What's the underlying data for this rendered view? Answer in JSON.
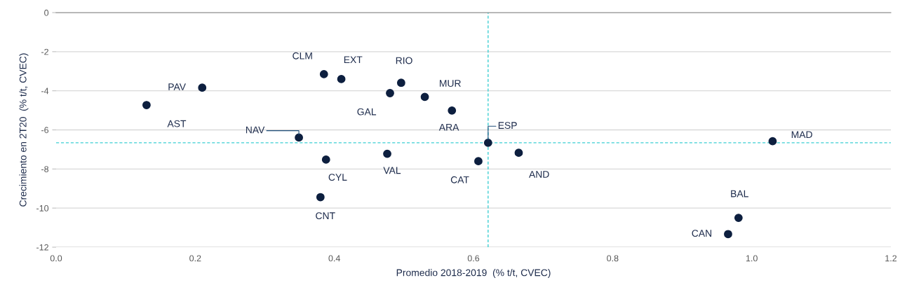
{
  "chart_data": {
    "type": "scatter",
    "xlabel": "Promedio 2018-2019  (% t/t, CVEC)",
    "ylabel": "Crecimiento en 2T20  (% t/t, CVEC)",
    "xlim": [
      0,
      1.2
    ],
    "ylim": [
      -12,
      0
    ],
    "xticks": [
      {
        "value": 0,
        "label": "0.0"
      },
      {
        "value": 0.2,
        "label": "0.2"
      },
      {
        "value": 0.4,
        "label": "0.4"
      },
      {
        "value": 0.6,
        "label": "0.6"
      },
      {
        "value": 0.8,
        "label": "0.8"
      },
      {
        "value": 1.0,
        "label": "1.0"
      },
      {
        "value": 1.2,
        "label": "1.2"
      }
    ],
    "yticks": [
      0,
      -2,
      -4,
      -6,
      -8,
      -10,
      -12
    ],
    "grid": "y",
    "marker": "circle",
    "legend": false,
    "ref_lines": [
      {
        "axis": "x",
        "value": 0.621,
        "color": "#3dcfd3",
        "line_style": "dashed"
      },
      {
        "axis": "y",
        "value": -6.66,
        "color": "#3dcfd3",
        "line_style": "dashed"
      }
    ],
    "series": [
      {
        "name": "AST",
        "color": "#0d1f3f",
        "x": [
          0.13
        ],
        "values": [
          -4.73
        ]
      },
      {
        "name": "PAV",
        "color": "#0d1f3f",
        "x": [
          0.21
        ],
        "values": [
          -3.84
        ]
      },
      {
        "name": "CLM",
        "color": "#0d1f3f",
        "x": [
          0.385
        ],
        "values": [
          -3.15
        ]
      },
      {
        "name": "EXT",
        "color": "#0d1f3f",
        "x": [
          0.41
        ],
        "values": [
          -3.4
        ]
      },
      {
        "name": "NAV",
        "color": "#0d1f3f",
        "x": [
          0.349
        ],
        "values": [
          -6.39
        ]
      },
      {
        "name": "CYL",
        "color": "#0d1f3f",
        "x": [
          0.388
        ],
        "values": [
          -7.52
        ]
      },
      {
        "name": "CNT",
        "color": "#0d1f3f",
        "x": [
          0.38
        ],
        "values": [
          -9.44
        ]
      },
      {
        "name": "RIO",
        "color": "#0d1f3f",
        "x": [
          0.496
        ],
        "values": [
          -3.59
        ]
      },
      {
        "name": "GAL",
        "color": "#0d1f3f",
        "x": [
          0.48
        ],
        "values": [
          -4.12
        ]
      },
      {
        "name": "MUR",
        "color": "#0d1f3f",
        "x": [
          0.53
        ],
        "values": [
          -4.31
        ]
      },
      {
        "name": "ARA",
        "color": "#0d1f3f",
        "x": [
          0.569
        ],
        "values": [
          -5.01
        ]
      },
      {
        "name": "ESP",
        "color": "#0d1f3f",
        "x": [
          0.621
        ],
        "values": [
          -6.66
        ]
      },
      {
        "name": "AND",
        "color": "#0d1f3f",
        "x": [
          0.665
        ],
        "values": [
          -7.17
        ]
      },
      {
        "name": "CAT",
        "color": "#0d1f3f",
        "x": [
          0.607
        ],
        "values": [
          -7.6
        ]
      },
      {
        "name": "VAL",
        "color": "#0d1f3f",
        "x": [
          0.476
        ],
        "values": [
          -7.22
        ]
      },
      {
        "name": "MAD",
        "color": "#0d1f3f",
        "x": [
          1.03
        ],
        "values": [
          -6.58
        ]
      },
      {
        "name": "BAL",
        "color": "#0d1f3f",
        "x": [
          0.981
        ],
        "values": [
          -10.5
        ]
      },
      {
        "name": "CAN",
        "color": "#0d1f3f",
        "x": [
          0.966
        ],
        "values": [
          -11.33
        ]
      }
    ]
  }
}
